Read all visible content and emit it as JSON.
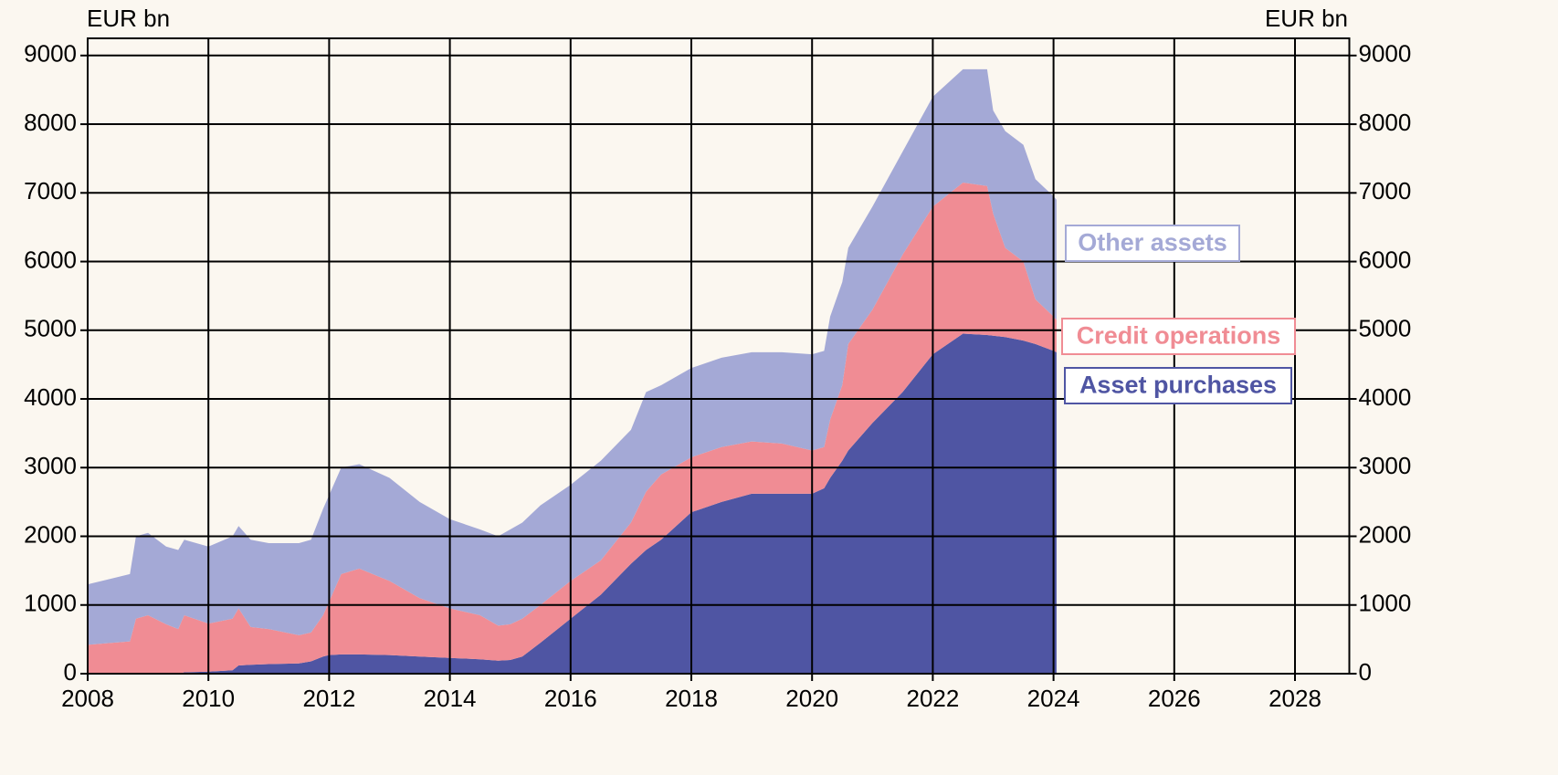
{
  "chart_data": {
    "type": "stacked_area",
    "y_label": "EUR bn",
    "y2_label": "EUR bn",
    "x": [
      2008.0,
      2008.7,
      2008.8,
      2009.0,
      2009.3,
      2009.5,
      2009.6,
      2010.0,
      2010.4,
      2010.5,
      2010.7,
      2011.0,
      2011.5,
      2011.7,
      2011.9,
      2012.0,
      2012.2,
      2012.5,
      2013.0,
      2013.5,
      2014.0,
      2014.5,
      2014.8,
      2015.0,
      2015.2,
      2015.5,
      2016.0,
      2016.5,
      2017.0,
      2017.25,
      2017.5,
      2018.0,
      2018.5,
      2019.0,
      2019.5,
      2020.0,
      2020.2,
      2020.3,
      2020.5,
      2020.6,
      2021.0,
      2021.5,
      2022.0,
      2022.5,
      2022.9,
      2023.0,
      2023.2,
      2023.5,
      2023.7,
      2024.0,
      2024.05
    ],
    "series": [
      {
        "name": "Asset purchases",
        "color": "#4f55a3",
        "values": [
          0,
          0,
          0,
          0,
          0,
          0,
          20,
          30,
          50,
          120,
          130,
          140,
          150,
          180,
          250,
          270,
          280,
          280,
          270,
          250,
          230,
          210,
          190,
          200,
          250,
          450,
          800,
          1150,
          1600,
          1800,
          1950,
          2350,
          2500,
          2620,
          2620,
          2620,
          2700,
          2850,
          3100,
          3250,
          3650,
          4100,
          4650,
          4950,
          4930,
          4920,
          4900,
          4850,
          4800,
          4700,
          4680
        ]
      },
      {
        "name": "Credit operations",
        "color": "#f08c94",
        "values": [
          420,
          470,
          800,
          850,
          720,
          650,
          830,
          700,
          750,
          830,
          550,
          510,
          410,
          420,
          600,
          780,
          1170,
          1250,
          1080,
          850,
          720,
          640,
          510,
          520,
          550,
          550,
          550,
          500,
          600,
          850,
          950,
          800,
          800,
          760,
          730,
          630,
          600,
          850,
          1100,
          1550,
          1650,
          2000,
          2150,
          2200,
          2170,
          1780,
          1300,
          1150,
          650,
          500,
          470
        ]
      },
      {
        "name": "Other assets",
        "color": "#a4a9d6",
        "values": [
          880,
          980,
          1200,
          1200,
          1130,
          1150,
          1100,
          1120,
          1200,
          1200,
          1270,
          1250,
          1340,
          1350,
          1550,
          1550,
          1550,
          1520,
          1500,
          1400,
          1300,
          1250,
          1300,
          1380,
          1400,
          1450,
          1400,
          1450,
          1350,
          1450,
          1300,
          1300,
          1300,
          1300,
          1330,
          1400,
          1400,
          1500,
          1500,
          1400,
          1500,
          1500,
          1600,
          1650,
          1700,
          1500,
          1700,
          1700,
          1750,
          1750,
          1750
        ]
      }
    ],
    "xlim": [
      2008,
      2028.9
    ],
    "xticks": [
      2008,
      2010,
      2012,
      2014,
      2016,
      2018,
      2020,
      2022,
      2024,
      2026,
      2028
    ],
    "ylim": [
      0,
      9250
    ],
    "yticks": [
      0,
      1000,
      2000,
      3000,
      4000,
      5000,
      6000,
      7000,
      8000,
      9000
    ],
    "grid": true
  }
}
